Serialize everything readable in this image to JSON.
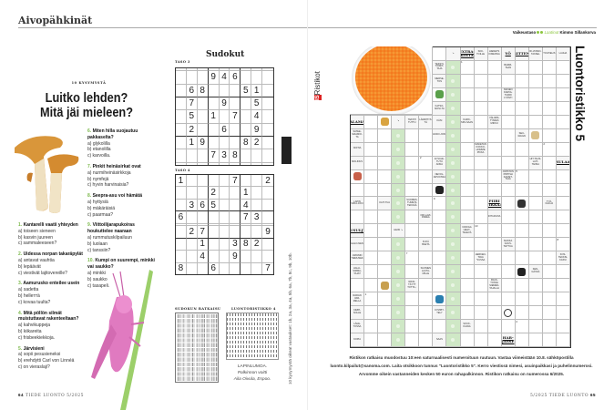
{
  "left_page": {
    "section_title": "Aivopähkinät",
    "kicker": "10 KYSYMYSTÄ",
    "title_line1": "Luitko lehden?",
    "title_line2": "Mitä jäi mieleen?",
    "questions": [
      {
        "num": "1.",
        "text": "Kantarelli vaatii yhteyden",
        "options": [
          "a) toiseen sieneen",
          "b) kasvin juureen",
          "c) sammaleeseen?"
        ]
      },
      {
        "num": "2.",
        "text": "Uidessa norpan takaräpylät",
        "options": [
          "a) antavat vauhtia",
          "b) lepäävät",
          "c) viestivät lajitovereille?"
        ]
      },
      {
        "num": "3.",
        "text": "Aamurusko enteilee usein",
        "options": [
          "a) sadetta",
          "b) helleттä",
          "c) kovaa tuulta?"
        ]
      },
      {
        "num": "4.",
        "text": "Mitä pöllön silmät muistuttavat rakenteeltaan?",
        "options": [
          "a) kahvikuppeja",
          "b) kiikareita",
          "c) frisbeekiekkoja."
        ]
      },
      {
        "num": "5.",
        "text": "Järvisieni",
        "options": [
          "a) sopii pesusieneksi",
          "b) erehdytti Carl von Linnéä",
          "c) on vieraslaji?"
        ]
      },
      {
        "num": "6.",
        "text": "Miten hilla suojautuu pakkaselta?",
        "options": [
          "a) glykolilla",
          "b) etanolilla",
          "c) karvoilla."
        ]
      },
      {
        "num": "7.",
        "text": "Pinkit heinäsirkat ovat",
        "options": [
          "a) nurmiheinäsirkkoja",
          "b) nymfejä",
          "c) hyvin harvinaisia?"
        ]
      },
      {
        "num": "8.",
        "text": "Seepra-asu voi hämätä",
        "options": [
          "a) hyttysiä",
          "b) mäkäräisiä",
          "c) paarmaa?"
        ]
      },
      {
        "num": "9.",
        "text": "Viittoilijarapukoiras houkuttelee naaraan",
        "options": [
          "a) rummutuskilpailuun",
          "b) luolaan",
          "c) tanssiin?"
        ]
      },
      {
        "num": "10.",
        "text": "Kumpi on suurempi, minkki vai saukko?",
        "options": [
          "a) minkki",
          "b) saukko",
          "c) tasapeli."
        ]
      }
    ],
    "footer_page": "64",
    "footer_text": "TIEDE LUONTO 5/2025",
    "answers_vertical": "10 kysymystä oikeat vastaukset: 1b, 2a, 3a, 4a, 5b, 6a, 7b, 8c, 9b, 10b."
  },
  "sudoku": {
    "title": "Sudokut",
    "puzzles": [
      {
        "level": "TASO 3",
        "grid": [
          "000000000",
          "000946000",
          "068000510",
          "070090050",
          "050107040",
          "020060090",
          "019000820",
          "000738000",
          "000000000"
        ]
      },
      {
        "level": "TASO 4",
        "grid": [
          "100007002",
          "000200100",
          "036500400",
          "600000730",
          "000000000",
          "027000009",
          "001003820",
          "004009000",
          "800600007"
        ]
      }
    ],
    "solution_heading": "SUDOKUN RATKAISU",
    "crossword_solution_heading": "LUONTORISTIKKO 4",
    "prize_answer": "LAPINLUMOA.",
    "prize_line": "Palkinnon voitti",
    "prize_winner": "Aila Oivula, Espoo.",
    "logo_text": "Sanoma Sudokut"
  },
  "right_page": {
    "brand": "Ristikot",
    "brand_mark": "IS",
    "puzzle_title": "Luontoristikko 5",
    "difficulty_label": "Vaikeustaso",
    "difficulty_level": 2,
    "author_label": "Laatinut",
    "author": "Kimmo Sillankorva",
    "accent_color": "#8cc63f",
    "highlight_column_color": "#cfe8c6",
    "instructions": [
      "Ristikon ratkaisu muodostuu 10:een saturnaalisesti numeroituun ruutuun. Vastaa viimeistään 10.8. sähköpostilla",
      "luonto.kilpailut@sanoma.com. Laita otsikkoon tunnus \"Luontoristikko 5\". Kerro viestissä nimesi, asuinpaikkasi ja puhelinnumerosi.",
      "Arvomme oikein vastanneiden kesken 50 euron rahapalkinnon. Ristikon ratkaisu on numerossa 6/2025."
    ],
    "footer_text": "5/2025 TIEDE LUONTO",
    "footer_page": "65",
    "crossword_rows": [
      [
        "P",
        "P",
        "P",
        "P",
        "P",
        "P",
        "",
        "↘",
        "*EXTRA-KOITA",
        "SIIO-TOILLE",
        "HIENETS KIMEISSA",
        "*YÖ",
        "*SITTEN",
        "RI-VOIMO-TAKSEL",
        "TOI-PIELIS",
        "LAUHA"
      ],
      [
        "P",
        "P",
        "P",
        "P",
        "P",
        "P",
        "TEKSTI-TOIMIT-TAJA",
        "G",
        "#1",
        "",
        "",
        "BARRI-TAAN",
        "",
        "",
        "",
        ""
      ],
      [
        "P",
        "P",
        "P",
        "P",
        "P",
        "P",
        "MERSE-TOS",
        "G",
        "",
        "",
        "",
        "",
        "",
        "",
        "",
        ""
      ],
      [
        "P",
        "P",
        "P",
        "P",
        "P",
        "P",
        "@leaf",
        "G",
        "",
        "",
        "",
        "NAISEN KARVA-TURRI LYÖNTI",
        "",
        "",
        "",
        ""
      ],
      [
        "P",
        "P",
        "P",
        "P",
        "P",
        "P",
        "KATSO-MOSI-TA",
        "G",
        "",
        "",
        "",
        "",
        "",
        "",
        "",
        ""
      ],
      [
        "*SALAMAT",
        "",
        "@giraffe",
        "↘",
        "TEKSTI TUTTU",
        "LÄMMITYS-TÄ",
        "KÄSI",
        "G",
        "KAIKK-SIIN-SAAN",
        "",
        "VÄLIMIS-TYMIES MIKKU",
        "",
        "",
        "",
        "",
        ""
      ],
      [
        "SATEE-MAAMIO-TA",
        "",
        "",
        "G",
        "",
        "",
        "ESKO-JOKI",
        "G",
        "",
        "",
        "",
        "",
        "SEU-RAAVA",
        "@fish",
        "",
        ""
      ],
      [
        "NOITIA",
        "",
        "",
        "G",
        "",
        "",
        "",
        "G",
        "",
        "MAKETAN KOKKO-HOMME PIKKA",
        "",
        "",
        "",
        "",
        "#2",
        ""
      ],
      [
        "MOLINUS",
        "",
        "",
        "G",
        "",
        "#2",
        "EI SALE-TUTU ANNA",
        "G",
        "",
        "",
        "",
        "",
        "",
        "HIT-TAUS-LAIT-TEISIA",
        "",
        "*SULAA"
      ],
      [
        "@horse",
        "",
        "",
        "G",
        "",
        "",
        "NEVOL-ARVIOSSA",
        "G",
        "",
        "",
        "",
        "JOPSTON PIRTISH KAIVET-TAJA",
        "#5",
        "",
        "",
        ""
      ],
      [
        "",
        "",
        "",
        "G",
        "",
        "",
        "@skier",
        "G",
        "",
        "",
        "",
        "",
        "",
        "",
        "",
        ""
      ],
      [
        "LAPIN SIIKA-JOKI",
        "",
        "KAIT-TUA",
        "G",
        "SUOMES-TUMETA TEKIJÄÄ",
        "",
        "#9",
        "G",
        "",
        "",
        "*PIIRI TIKKAA",
        "",
        "@harmonica",
        "",
        "TYÖ-KALUA",
        ""
      ],
      [
        "",
        "",
        "",
        "G",
        "",
        "ORI-LAZI-PAREA",
        "",
        "G",
        "",
        "",
        "INTI-RUIVA",
        "",
        "",
        "",
        "",
        ""
      ],
      [
        "*LUKUSULJUMA",
        "",
        "",
        "HEIKI ↘",
        "",
        "",
        "",
        "G",
        "NOKIGA UEHT-TELEVÄ",
        "#10",
        "",
        "",
        "",
        "",
        "",
        ""
      ],
      [
        "HALO-NEN",
        "",
        "",
        "G",
        "",
        "FUKÄ BAETA",
        "",
        "G",
        "",
        "",
        "",
        "MAKKA KAUS-TETTUA",
        "",
        "",
        "",
        "#8"
      ],
      [
        "JAPANIN TIEMUSEK",
        "",
        "",
        "G",
        "#7",
        "",
        "",
        "G",
        "",
        "HERKEN-TAVA *JUSSA",
        "",
        "",
        "",
        "",
        "",
        "KOS-TEKKIS-KASVI"
      ],
      [
        "HALLI-SIMMA-TAJAT",
        "",
        "",
        "G",
        "",
        "SUOMEN LAUTA-MILLE",
        "",
        "G",
        "",
        "",
        "",
        "",
        "@crow",
        "KEN-GÄSSÄ",
        "",
        ""
      ],
      [
        "",
        "",
        "@elf",
        "G",
        "RIKKI-TÄYTT TOTTA ↓",
        "",
        "",
        "G",
        "",
        "",
        "PAAS-TOSSA SIEMEN-TAJALLA",
        "",
        "",
        "",
        "",
        ""
      ],
      [
        "RADAN VAR-MELLA",
        "#1",
        "",
        "G",
        "",
        "",
        "@hiker",
        "G",
        "",
        "",
        "",
        "",
        "",
        "",
        "",
        ""
      ],
      [
        "KIMPI-SOLLE",
        "",
        "",
        "G",
        "",
        "",
        "KYMPIT-TELY",
        "G",
        "",
        "",
        "",
        "@speech",
        "",
        "",
        "",
        ""
      ],
      [
        "LÄHE-TOSSA",
        "",
        "",
        "G",
        "",
        "",
        "",
        "G",
        "SOUK-KAAVA",
        "",
        "",
        "",
        "#4",
        "",
        "",
        ""
      ],
      [
        "KOPIA",
        "",
        "",
        "G",
        "",
        "",
        "SAAS",
        "G",
        "",
        "",
        "",
        "*HAR-JASSE",
        "",
        "",
        "",
        ""
      ]
    ]
  }
}
